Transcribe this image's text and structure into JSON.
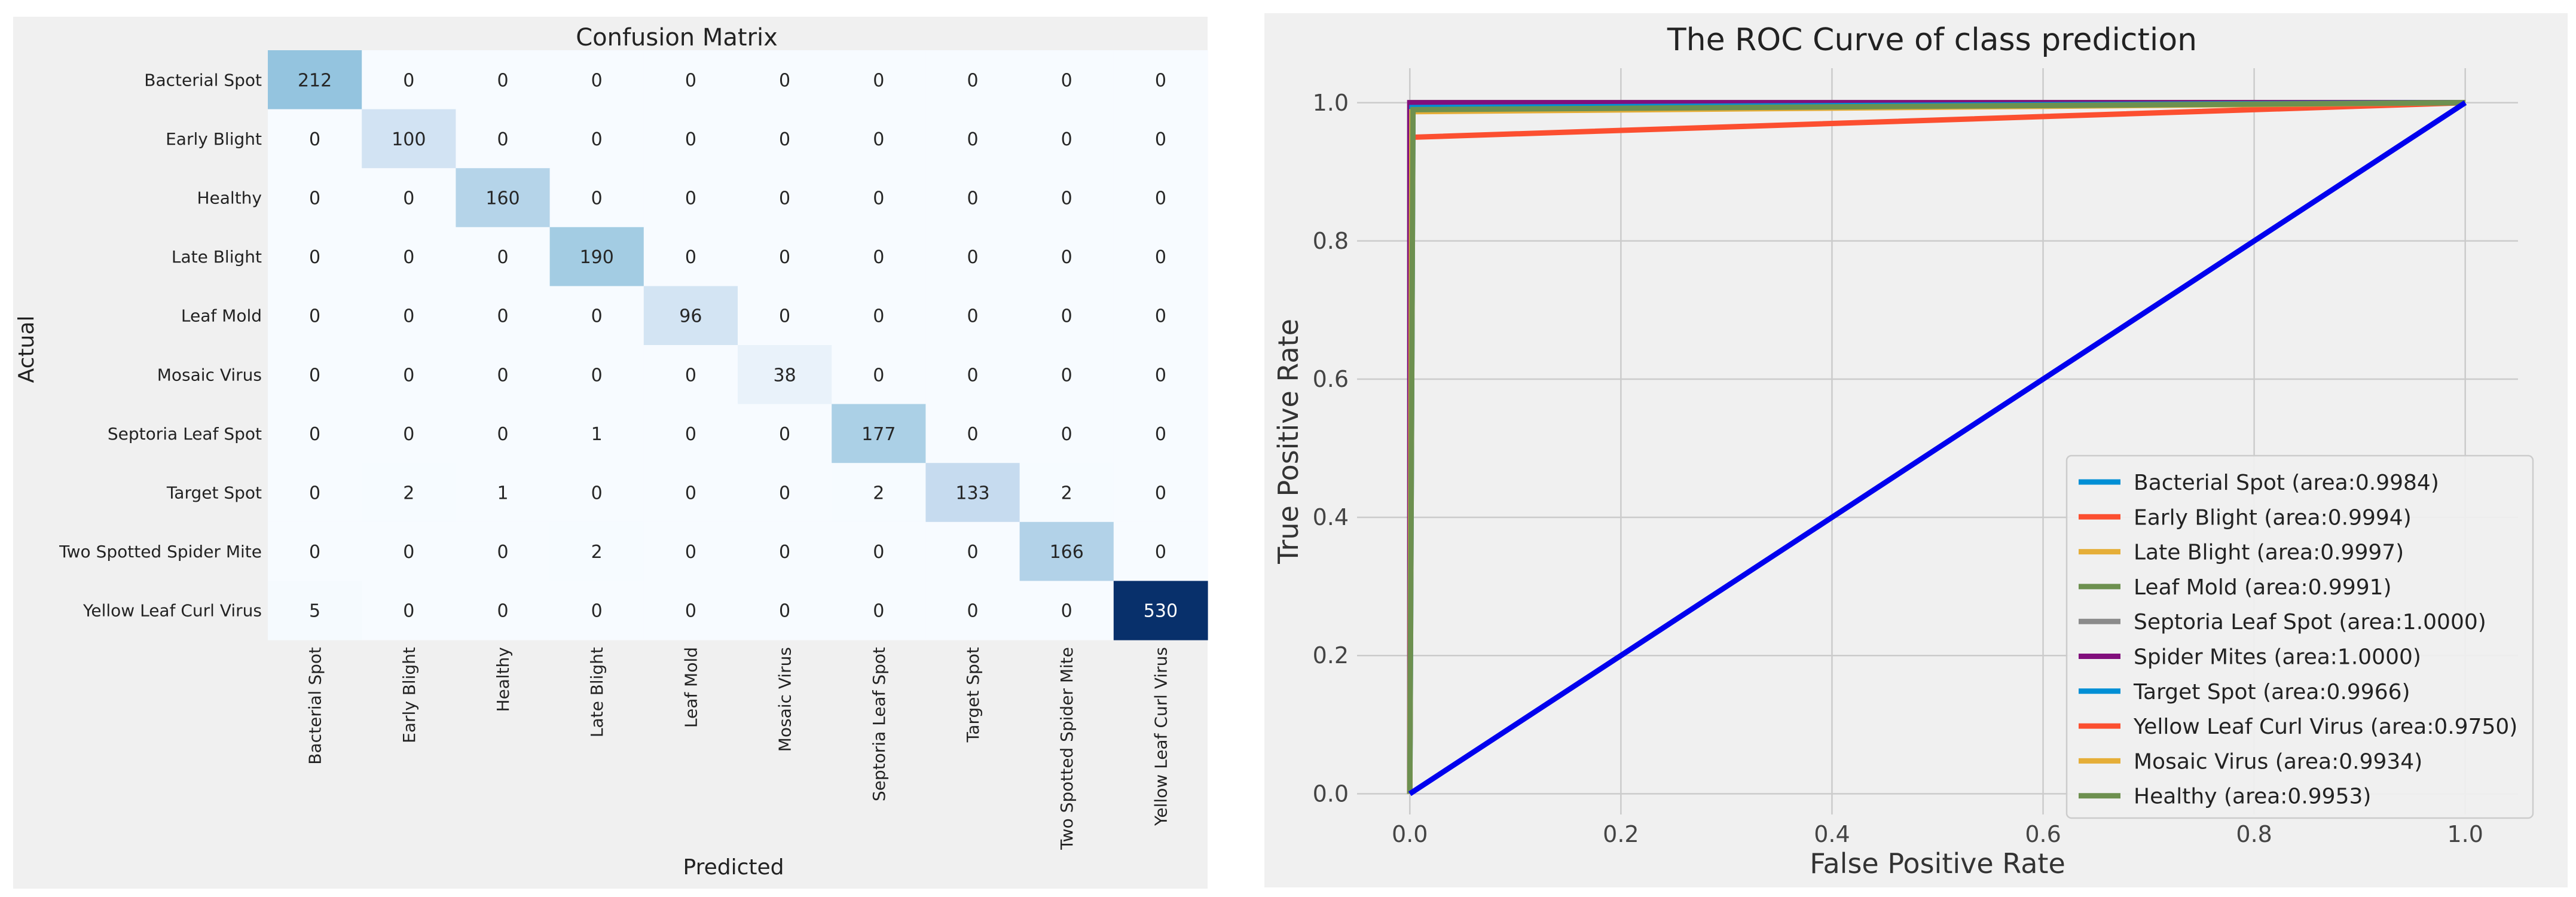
{
  "chart_data": [
    {
      "type": "heatmap",
      "title": "Confusion Matrix",
      "xlabel": "Predicted",
      "ylabel": "Actual",
      "row_labels": [
        "Bacterial Spot",
        "Early Blight",
        "Healthy",
        "Late Blight",
        "Leaf Mold",
        "Mosaic Virus",
        "Septoria Leaf Spot",
        "Target Spot",
        "Two Spotted Spider Mite",
        "Yellow Leaf Curl Virus"
      ],
      "col_labels": [
        "Bacterial Spot",
        "Early Blight",
        "Healthy",
        "Late Blight",
        "Leaf Mold",
        "Mosaic Virus",
        "Septoria Leaf Spot",
        "Target Spot",
        "Two Spotted Spider Mite",
        "Yellow Leaf Curl Virus"
      ],
      "values": [
        [
          212,
          0,
          0,
          0,
          0,
          0,
          0,
          0,
          0,
          0
        ],
        [
          0,
          100,
          0,
          0,
          0,
          0,
          0,
          0,
          0,
          0
        ],
        [
          0,
          0,
          160,
          0,
          0,
          0,
          0,
          0,
          0,
          0
        ],
        [
          0,
          0,
          0,
          190,
          0,
          0,
          0,
          0,
          0,
          0
        ],
        [
          0,
          0,
          0,
          0,
          96,
          0,
          0,
          0,
          0,
          0
        ],
        [
          0,
          0,
          0,
          0,
          0,
          38,
          0,
          0,
          0,
          0
        ],
        [
          0,
          0,
          0,
          1,
          0,
          0,
          177,
          0,
          0,
          0
        ],
        [
          0,
          2,
          1,
          0,
          0,
          0,
          2,
          133,
          2,
          0
        ],
        [
          0,
          0,
          0,
          2,
          0,
          0,
          0,
          0,
          166,
          0
        ],
        [
          5,
          0,
          0,
          0,
          0,
          0,
          0,
          0,
          0,
          530
        ]
      ],
      "colormap": "Blues",
      "color_low": "#f7fbff",
      "color_high": "#08306b"
    },
    {
      "type": "line",
      "title": "The ROC Curve of class prediction",
      "xlabel": "False Positive Rate",
      "ylabel": "True Positive Rate",
      "xlim": [
        -0.05,
        1.05
      ],
      "ylim": [
        -0.03,
        1.05
      ],
      "xticks": [
        "0.0",
        "0.2",
        "0.4",
        "0.6",
        "0.8",
        "1.0"
      ],
      "yticks": [
        "0.0",
        "0.2",
        "0.4",
        "0.6",
        "0.8",
        "1.0"
      ],
      "grid": true,
      "legend_position": "lower-right",
      "series": [
        {
          "name": "Bacterial Spot (area:0.9984)",
          "color": "#008fd5",
          "x": [
            0,
            0.003,
            1
          ],
          "y": [
            0,
            1.0,
            1.0
          ]
        },
        {
          "name": "Early Blight (area:0.9994)",
          "color": "#fc4f30",
          "x": [
            0,
            0.001,
            1
          ],
          "y": [
            0,
            1.0,
            1.0
          ]
        },
        {
          "name": "Late Blight (area:0.9997)",
          "color": "#e5ae38",
          "x": [
            0,
            0.001,
            1
          ],
          "y": [
            0,
            1.0,
            1.0
          ]
        },
        {
          "name": "Leaf Mold (area:0.9991)",
          "color": "#6d904f",
          "x": [
            0,
            0.002,
            1
          ],
          "y": [
            0,
            1.0,
            1.0
          ]
        },
        {
          "name": "Septoria Leaf Spot (area:1.0000)",
          "color": "#8b8b8b",
          "x": [
            0,
            0.0,
            1
          ],
          "y": [
            0,
            1.0,
            1.0
          ]
        },
        {
          "name": "Spider Mites (area:1.0000)",
          "color": "#810f7c",
          "x": [
            0,
            0.0,
            1
          ],
          "y": [
            0,
            1.0,
            1.0
          ]
        },
        {
          "name": "Target Spot (area:0.9966)",
          "color": "#008fd5",
          "x": [
            0,
            0.002,
            1
          ],
          "y": [
            0,
            0.993,
            1.0
          ]
        },
        {
          "name": "Yellow Leaf Curl Virus (area:0.9750)",
          "color": "#fc4f30",
          "x": [
            0,
            0.002,
            1
          ],
          "y": [
            0,
            0.95,
            1.0
          ]
        },
        {
          "name": "Mosaic Virus  (area:0.9934)",
          "color": "#e5ae38",
          "x": [
            0,
            0.002,
            1
          ],
          "y": [
            0,
            0.987,
            1.0
          ]
        },
        {
          "name": "Healthy (area:0.9953)",
          "color": "#6d904f",
          "x": [
            0,
            0.003,
            1
          ],
          "y": [
            0,
            0.99,
            1.0
          ]
        }
      ],
      "reference_line": {
        "color": "#0000ee",
        "x": [
          0,
          1
        ],
        "y": [
          0,
          1
        ]
      }
    }
  ]
}
